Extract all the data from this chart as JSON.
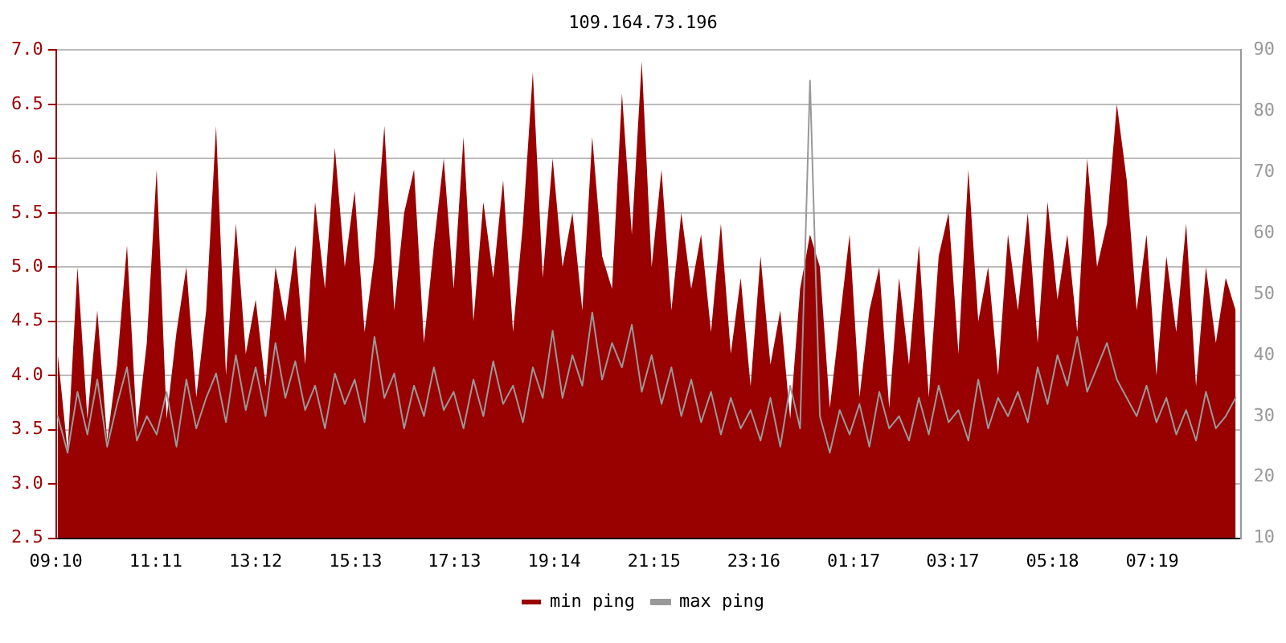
{
  "chart_data": {
    "type": "area",
    "title": "109.164.73.196",
    "x": [
      "--01-01T09:12",
      "--01-01T09:24",
      "--01-01T09:36",
      "--01-01T09:48",
      "--01-01T10:00",
      "--01-01T10:12",
      "--01-01T10:24",
      "--01-01T10:36",
      "--01-01T10:48",
      "--01-01T11:00",
      "--01-01T11:12",
      "--01-01T11:24",
      "--01-01T11:36",
      "--01-01T11:48",
      "--01-01T12:00",
      "--01-01T12:12",
      "--01-01T12:24",
      "--01-01T12:36",
      "--01-01T12:48",
      "--01-01T13:00",
      "--01-01T13:12",
      "--01-01T13:24",
      "--01-01T13:36",
      "--01-01T13:48",
      "--01-01T14:00",
      "--01-01T14:12",
      "--01-01T14:24",
      "--01-01T14:36",
      "--01-01T14:48",
      "--01-01T15:00",
      "--01-01T15:12",
      "--01-01T15:24",
      "--01-01T15:36",
      "--01-01T15:48",
      "--01-01T16:00",
      "--01-01T16:12",
      "--01-01T16:24",
      "--01-01T16:36",
      "--01-01T16:48",
      "--01-01T17:00",
      "--01-01T17:12",
      "--01-01T17:24",
      "--01-01T17:36",
      "--01-01T17:48",
      "--01-01T18:00",
      "--01-01T18:12",
      "--01-01T18:24",
      "--01-01T18:36",
      "--01-01T18:48",
      "--01-01T19:00",
      "--01-01T19:12",
      "--01-01T19:24",
      "--01-01T19:36",
      "--01-01T19:48",
      "--01-01T20:00",
      "--01-01T20:12",
      "--01-01T20:24",
      "--01-01T20:36",
      "--01-01T20:48",
      "--01-01T21:00",
      "--01-01T21:12",
      "--01-01T21:24",
      "--01-01T21:36",
      "--01-01T21:48",
      "--01-01T22:00",
      "--01-01T22:12",
      "--01-01T22:24",
      "--01-01T22:36",
      "--01-01T22:48",
      "--01-01T23:00",
      "--01-01T23:12",
      "--01-01T23:24",
      "--01-01T23:36",
      "--01-01T23:48",
      "--01-02T00:00",
      "--01-02T00:12",
      "--01-02T00:24",
      "--01-02T00:36",
      "--01-02T00:48",
      "--01-02T01:00",
      "--01-02T01:12",
      "--01-02T01:24",
      "--01-02T01:36",
      "--01-02T01:48",
      "--01-02T02:00",
      "--01-02T02:12",
      "--01-02T02:24",
      "--01-02T02:36",
      "--01-02T02:48",
      "--01-02T03:00",
      "--01-02T03:12",
      "--01-02T03:24",
      "--01-02T03:36",
      "--01-02T03:48",
      "--01-02T04:00",
      "--01-02T04:12",
      "--01-02T04:24",
      "--01-02T04:36",
      "--01-02T04:48",
      "--01-02T05:00",
      "--01-02T05:12",
      "--01-02T05:24",
      "--01-02T05:36",
      "--01-02T05:48",
      "--01-02T06:00",
      "--01-02T06:12",
      "--01-02T06:24",
      "--01-02T06:36",
      "--01-02T06:48",
      "--01-02T07:00",
      "--01-02T07:12",
      "--01-02T07:24",
      "--01-02T07:36",
      "--01-02T07:48",
      "--01-02T08:00",
      "--01-02T08:12",
      "--01-02T08:24",
      "--01-02T08:36",
      "--01-02T08:48",
      "--01-02T09:00"
    ],
    "series": [
      {
        "name": "min ping",
        "color": "#990000",
        "values": [
          4.2,
          3.3,
          5.0,
          3.6,
          4.6,
          3.4,
          4.1,
          5.2,
          3.5,
          4.3,
          5.9,
          3.6,
          4.4,
          5.0,
          3.8,
          4.6,
          6.3,
          4.0,
          5.4,
          4.2,
          4.7,
          3.9,
          5.0,
          4.5,
          5.2,
          4.1,
          5.6,
          4.8,
          6.1,
          5.0,
          5.7,
          4.4,
          5.1,
          6.3,
          4.6,
          5.5,
          5.9,
          4.3,
          5.2,
          6.0,
          4.8,
          6.2,
          4.5,
          5.6,
          4.9,
          5.8,
          4.4,
          5.4,
          6.8,
          4.9,
          6.0,
          5.0,
          5.5,
          4.6,
          6.2,
          5.1,
          4.8,
          6.6,
          5.3,
          6.9,
          5.0,
          5.9,
          4.6,
          5.5,
          4.8,
          5.3,
          4.4,
          5.4,
          4.2,
          4.9,
          3.9,
          5.1,
          4.1,
          4.6,
          3.6,
          4.8,
          5.3,
          5.0,
          3.7,
          4.5,
          5.3,
          3.8,
          4.6,
          5.0,
          3.7,
          4.9,
          4.1,
          5.2,
          3.8,
          5.1,
          5.5,
          4.2,
          5.9,
          4.5,
          5.0,
          4.0,
          5.3,
          4.6,
          5.5,
          4.3,
          5.6,
          4.7,
          5.3,
          4.4,
          6.0,
          5.0,
          5.4,
          6.5,
          5.8,
          4.6,
          5.3,
          4.0,
          5.1,
          4.4,
          5.4,
          3.9,
          5.0,
          4.3,
          4.9,
          4.6
        ]
      },
      {
        "name": "max ping",
        "color": "#999999",
        "type": "line",
        "axis": "y2",
        "values": [
          30,
          24,
          34,
          27,
          36,
          25,
          32,
          38,
          26,
          30,
          27,
          34,
          25,
          36,
          28,
          33,
          37,
          29,
          40,
          31,
          38,
          30,
          42,
          33,
          39,
          31,
          35,
          28,
          37,
          32,
          36,
          29,
          43,
          33,
          37,
          28,
          35,
          30,
          38,
          31,
          34,
          28,
          36,
          30,
          39,
          32,
          35,
          29,
          38,
          33,
          44,
          33,
          40,
          35,
          47,
          36,
          42,
          38,
          45,
          34,
          40,
          32,
          38,
          30,
          36,
          29,
          34,
          27,
          33,
          28,
          31,
          26,
          33,
          25,
          35,
          28,
          85,
          30,
          24,
          31,
          27,
          32,
          25,
          34,
          28,
          30,
          26,
          33,
          27,
          35,
          29,
          31,
          26,
          36,
          28,
          33,
          30,
          34,
          29,
          38,
          32,
          40,
          35,
          43,
          34,
          38,
          42,
          36,
          33,
          30,
          35,
          29,
          33,
          27,
          31,
          26,
          34,
          28,
          30,
          33
        ]
      }
    ],
    "xlim": [
      "--01-01T09:10",
      "--01-02T09:06"
    ],
    "xticks": [
      {
        "value": "--01-01T09:10",
        "label": "09:10"
      },
      {
        "value": "--01-01T11:11",
        "label": "11:11"
      },
      {
        "value": "--01-01T13:12",
        "label": "13:12"
      },
      {
        "value": "--01-01T15:13",
        "label": "15:13"
      },
      {
        "value": "--01-01T17:13",
        "label": "17:13"
      },
      {
        "value": "--01-01T19:14",
        "label": "19:14"
      },
      {
        "value": "--01-01T21:15",
        "label": "21:15"
      },
      {
        "value": "--01-01T23:16",
        "label": "23:16"
      },
      {
        "value": "--01-02T01:17",
        "label": "01:17"
      },
      {
        "value": "--01-02T03:17",
        "label": "03:17"
      },
      {
        "value": "--01-02T05:18",
        "label": "05:18"
      },
      {
        "value": "--01-02T07:19",
        "label": "07:19"
      }
    ],
    "ylim": [
      2.5,
      7.0
    ],
    "yticks": [
      2.5,
      {
        "value": 3,
        "label": "3.0"
      },
      3.5,
      {
        "value": 4,
        "label": "4.0"
      },
      4.5,
      {
        "value": 5,
        "label": "5.0"
      },
      5.5,
      {
        "value": 6,
        "label": "6.0"
      },
      6.5,
      {
        "value": 7,
        "label": "7.0"
      }
    ],
    "y2lim": [
      10,
      90
    ],
    "y2ticks": [
      10,
      20,
      30,
      40,
      50,
      60,
      70,
      80,
      90
    ],
    "grid": "y",
    "legend": "bottom",
    "marker": "none",
    "line_style": "solid"
  }
}
